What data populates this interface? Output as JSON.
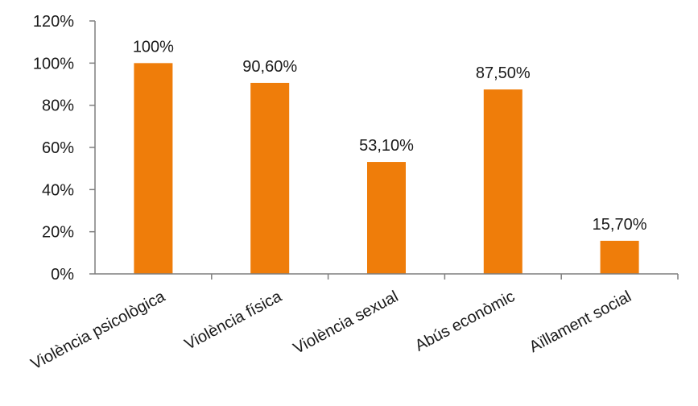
{
  "chart_data": {
    "type": "bar",
    "categories": [
      "Violència psicològica",
      "Violència física",
      "Violència sexual",
      "Abús econòmic",
      "Aïllament social"
    ],
    "values": [
      100,
      90.6,
      53.1,
      87.5,
      15.7
    ],
    "data_labels": [
      "100%",
      "90,60%",
      "53,10%",
      "87,50%",
      "15,70%"
    ],
    "yticks": [
      0,
      20,
      40,
      60,
      80,
      100,
      120
    ],
    "ytick_labels": [
      "0%",
      "20%",
      "40%",
      "60%",
      "80%",
      "100%",
      "120%"
    ],
    "ylim": [
      0,
      120
    ],
    "grid": false,
    "legend": "none",
    "bar_color": "#ef7d0a",
    "axis_color": "#7f7f7f",
    "text_color": "#1a1a1a"
  }
}
